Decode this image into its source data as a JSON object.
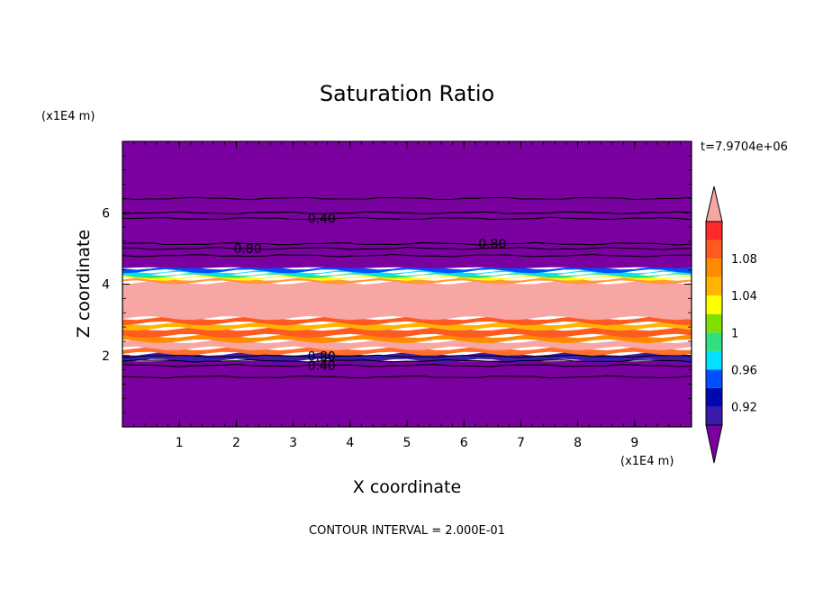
{
  "chart_data": {
    "type": "contour",
    "title": "Saturation Ratio",
    "xlabel": "X coordinate",
    "ylabel": "Z coordinate",
    "x_unit": "(x1E4 m)",
    "y_unit": "(x1E4 m)",
    "time_label": "t=7.9704e+06",
    "footer": "CONTOUR INTERVAL = 2.000E-01",
    "xlim": [
      0,
      10
    ],
    "ylim": [
      0,
      8
    ],
    "x_ticks": [
      1,
      2,
      3,
      4,
      5,
      6,
      7,
      8,
      9
    ],
    "y_ticks": [
      2,
      4,
      6
    ],
    "x_tick_labels": [
      "1",
      "2",
      "3",
      "4",
      "5",
      "6",
      "7",
      "8",
      "9"
    ],
    "y_tick_labels": [
      "2",
      "4",
      "6"
    ],
    "filled_bands": [
      {
        "z_bottom": 0.0,
        "z_top": 1.85,
        "color": "#7a00a0"
      },
      {
        "z_bottom": 1.85,
        "z_top": 2.05,
        "color": "#3c1cb0"
      },
      {
        "z_bottom": 2.05,
        "z_top": 2.2,
        "color": "#ff6e2a"
      },
      {
        "z_bottom": 2.2,
        "z_top": 2.4,
        "color": "#f7a6a4"
      },
      {
        "z_bottom": 2.4,
        "z_top": 2.55,
        "color": "#ff8c00"
      },
      {
        "z_bottom": 2.55,
        "z_top": 2.75,
        "color": "#ff5a20"
      },
      {
        "z_bottom": 2.75,
        "z_top": 2.9,
        "color": "#ffb400"
      },
      {
        "z_bottom": 2.9,
        "z_top": 3.05,
        "color": "#ff5a20"
      },
      {
        "z_bottom": 3.05,
        "z_top": 4.05,
        "color": "#f7a6a4"
      },
      {
        "z_bottom": 4.05,
        "z_top": 4.15,
        "color": "#ff9a3a"
      },
      {
        "z_bottom": 4.15,
        "z_top": 4.22,
        "color": "#ffff00"
      },
      {
        "z_bottom": 4.22,
        "z_top": 4.29,
        "color": "#30e080"
      },
      {
        "z_bottom": 4.29,
        "z_top": 4.36,
        "color": "#00e0ff"
      },
      {
        "z_bottom": 4.36,
        "z_top": 4.46,
        "color": "#0050ff"
      },
      {
        "z_bottom": 4.46,
        "z_top": 8.0,
        "color": "#7a00a0"
      }
    ],
    "contour_lines": [
      {
        "z": 6.4
      },
      {
        "z": 6.0
      },
      {
        "z": 5.84,
        "label": "0.40",
        "label_x": 3.5
      },
      {
        "z": 5.13,
        "label": "0.80",
        "label_x": 6.5
      },
      {
        "z": 5.0,
        "label": "0.80",
        "label_x": 2.2
      },
      {
        "z": 4.8
      },
      {
        "z": 1.98,
        "label": "0.80",
        "label_x": 3.5
      },
      {
        "z": 1.85
      },
      {
        "z": 1.72,
        "label": "0.40",
        "label_x": 3.5
      },
      {
        "z": 1.4
      }
    ],
    "colorbar": {
      "levels": [
        "0.92",
        "0.96",
        "1",
        "1.04",
        "1.08"
      ],
      "colors": [
        "#7a00a0",
        "#3a1aa8",
        "#0008b0",
        "#0050ff",
        "#00e0ff",
        "#30e080",
        "#7fe000",
        "#ffff00",
        "#ffb400",
        "#ff8c00",
        "#ff5a20",
        "#ff2a2a",
        "#f7a6a4"
      ]
    }
  }
}
